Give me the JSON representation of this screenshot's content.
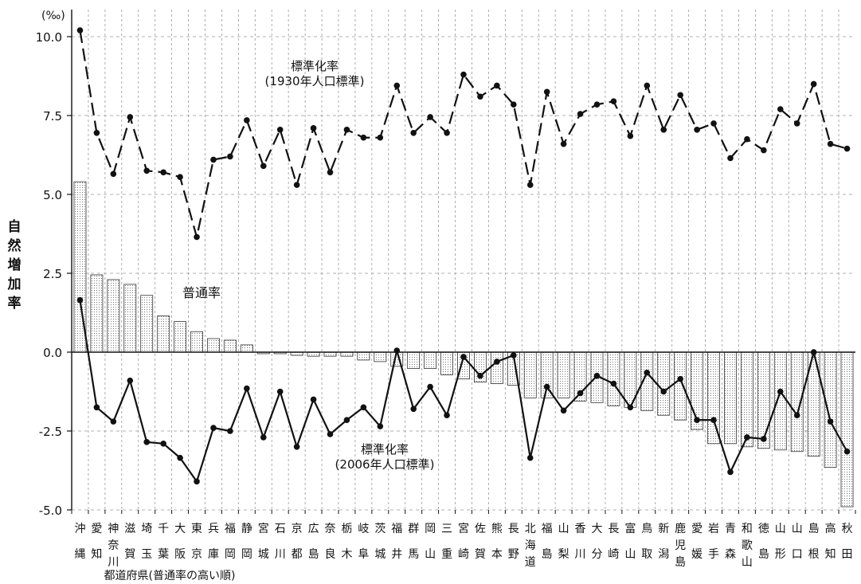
{
  "chart_data": {
    "type": "bar",
    "unit": "(‰)",
    "ylabel": "自然増加率",
    "xlabel": "都道府県(普通率の高い順)",
    "ylim": [
      -5.0,
      10.5
    ],
    "yticks": [
      "10.0",
      "7.5",
      "5.0",
      "2.5",
      "0.0",
      "-2.5",
      "-5.0"
    ],
    "ytick_values": [
      10.0,
      7.5,
      5.0,
      2.5,
      0.0,
      -2.5,
      -5.0
    ],
    "grid": "vertical-dashed",
    "categories": [
      "沖縄",
      "愛知",
      "神奈川",
      "滋賀",
      "埼玉",
      "千葉",
      "大阪",
      "東京",
      "兵庫",
      "福岡",
      "静岡",
      "宮城",
      "石川",
      "京都",
      "広島",
      "奈良",
      "栃木",
      "岐阜",
      "茨城",
      "福井",
      "群馬",
      "岡山",
      "三重",
      "宮崎",
      "佐賀",
      "熊本",
      "長野",
      "北海道",
      "福島",
      "山梨",
      "香川",
      "大分",
      "長崎",
      "富山",
      "鳥取",
      "新潟",
      "鹿児島",
      "愛媛",
      "岩手",
      "青森",
      "和歌山",
      "徳島",
      "山形",
      "山口",
      "島根",
      "高知",
      "秋田"
    ],
    "category_labels": [
      [
        "沖",
        "縄"
      ],
      [
        "愛",
        "知"
      ],
      [
        "神",
        "奈",
        "川"
      ],
      [
        "滋",
        "賀"
      ],
      [
        "埼",
        "玉"
      ],
      [
        "千",
        "葉"
      ],
      [
        "大",
        "阪"
      ],
      [
        "東",
        "京"
      ],
      [
        "兵",
        "庫"
      ],
      [
        "福",
        "岡"
      ],
      [
        "静",
        "岡"
      ],
      [
        "宮",
        "城"
      ],
      [
        "石",
        "川"
      ],
      [
        "京",
        "都"
      ],
      [
        "広",
        "島"
      ],
      [
        "奈",
        "良"
      ],
      [
        "栃",
        "木"
      ],
      [
        "岐",
        "阜"
      ],
      [
        "茨",
        "城"
      ],
      [
        "福",
        "井"
      ],
      [
        "群",
        "馬"
      ],
      [
        "岡",
        "山"
      ],
      [
        "三",
        "重"
      ],
      [
        "宮",
        "崎"
      ],
      [
        "佐",
        "賀"
      ],
      [
        "熊",
        "本"
      ],
      [
        "長",
        "野"
      ],
      [
        "北",
        "海",
        "道"
      ],
      [
        "福",
        "島"
      ],
      [
        "山",
        "梨"
      ],
      [
        "香",
        "川"
      ],
      [
        "大",
        "分"
      ],
      [
        "長",
        "崎"
      ],
      [
        "富",
        "山"
      ],
      [
        "鳥",
        "取"
      ],
      [
        "新",
        "潟"
      ],
      [
        "鹿",
        "児",
        "島"
      ],
      [
        "愛",
        "媛"
      ],
      [
        "岩",
        "手"
      ],
      [
        "青",
        "森"
      ],
      [
        "和",
        "歌",
        "山"
      ],
      [
        "徳",
        "島"
      ],
      [
        "山",
        "形"
      ],
      [
        "山",
        "口"
      ],
      [
        "島",
        "根"
      ],
      [
        "高",
        "知"
      ],
      [
        "秋",
        "田"
      ]
    ],
    "series": [
      {
        "name": "普通率",
        "kind": "bar",
        "values": [
          5.4,
          2.45,
          2.3,
          2.15,
          1.8,
          1.15,
          0.97,
          0.65,
          0.43,
          0.38,
          0.23,
          -0.05,
          -0.05,
          -0.1,
          -0.13,
          -0.13,
          -0.13,
          -0.25,
          -0.3,
          -0.45,
          -0.52,
          -0.52,
          -0.72,
          -0.85,
          -0.95,
          -1.0,
          -1.05,
          -1.45,
          -1.45,
          -1.45,
          -1.55,
          -1.6,
          -1.7,
          -1.75,
          -1.85,
          -2.0,
          -2.15,
          -2.45,
          -2.9,
          -2.9,
          -3.0,
          -3.05,
          -3.1,
          -3.15,
          -3.3,
          -3.65,
          -4.9
        ]
      },
      {
        "name": "標準化率(1930年人口標準)",
        "label_lines": [
          "標準化率",
          "(1930年人口標準)"
        ],
        "kind": "line-dashed",
        "values": [
          10.2,
          6.95,
          5.65,
          7.45,
          5.75,
          5.7,
          5.55,
          3.65,
          6.1,
          6.2,
          7.35,
          5.9,
          7.05,
          5.3,
          7.1,
          5.7,
          7.05,
          6.8,
          6.8,
          8.45,
          6.95,
          7.45,
          6.95,
          8.8,
          8.1,
          8.45,
          7.85,
          5.3,
          8.25,
          6.6,
          7.55,
          7.85,
          7.95,
          6.85,
          8.45,
          7.05,
          8.15,
          7.05,
          7.25,
          6.15,
          6.75,
          6.4,
          7.7,
          7.25,
          8.5,
          6.6,
          6.45
        ]
      },
      {
        "name": "標準化率(2006年人口標準)",
        "label_lines": [
          "標準化率",
          "(2006年人口標準)"
        ],
        "kind": "line-solid",
        "values": [
          1.65,
          -1.75,
          -2.2,
          -0.9,
          -2.85,
          -2.9,
          -3.35,
          -4.1,
          -2.4,
          -2.5,
          -1.15,
          -2.7,
          -1.25,
          -3.0,
          -1.5,
          -2.6,
          -2.15,
          -1.75,
          -2.35,
          0.05,
          -1.8,
          -1.1,
          -2.0,
          -0.15,
          -0.75,
          -0.3,
          -0.1,
          -3.35,
          -1.1,
          -1.85,
          -1.3,
          -0.75,
          -1.0,
          -1.75,
          -0.65,
          -1.25,
          -0.85,
          -2.15,
          -2.15,
          -3.8,
          -2.7,
          -2.75,
          -1.25,
          -2.0,
          0.0,
          -2.2,
          -3.15
        ]
      }
    ],
    "colors": {
      "line": "#111111",
      "bar_edge": "#333333",
      "grid": "#999999"
    }
  }
}
